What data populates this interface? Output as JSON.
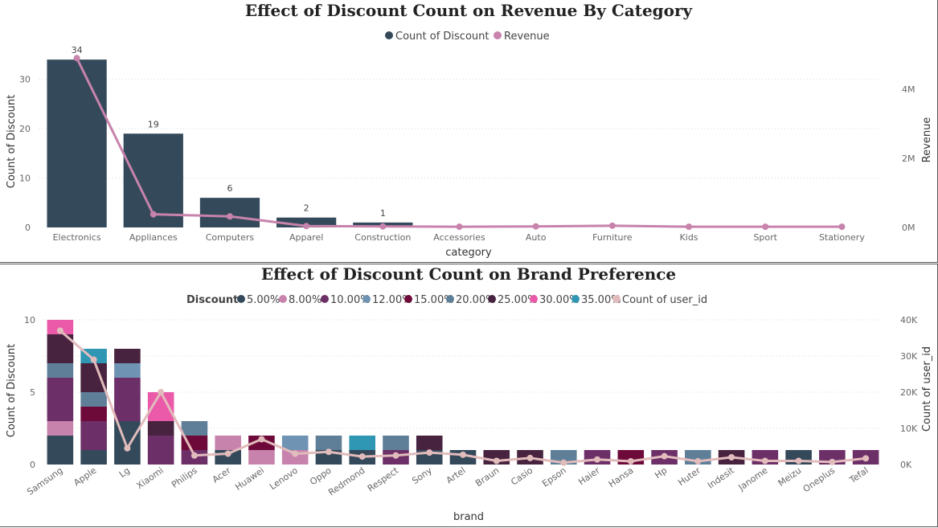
{
  "chart_data": [
    {
      "type": "bar",
      "title": "Effect of Discount Count on Revenue By Category",
      "xlabel": "category",
      "ylabel": "Count of Discount",
      "y2label": "Revenue",
      "ylim": [
        0,
        35
      ],
      "y2lim": [
        0,
        5000000
      ],
      "yticks": [
        "0",
        "10",
        "20",
        "30"
      ],
      "y2ticks": [
        "0M",
        "2M",
        "4M"
      ],
      "legend_position": "top-center",
      "grid": true,
      "categories": [
        "Electronics",
        "Appliances",
        "Computers",
        "Apparel",
        "Construction",
        "Accessories",
        "Auto",
        "Furniture",
        "Kids",
        "Sport",
        "Stationery"
      ],
      "series": [
        {
          "name": "Count of Discount",
          "kind": "bar",
          "color": "#34495a",
          "values": [
            34,
            19,
            6,
            2,
            1,
            0,
            0,
            0,
            0,
            0,
            0
          ],
          "labels": [
            "34",
            "19",
            "6",
            "2",
            "1"
          ]
        },
        {
          "name": "Revenue",
          "kind": "line",
          "axis": "right",
          "color": "#c783ac",
          "values": [
            4900000,
            380000,
            320000,
            40000,
            30000,
            20000,
            30000,
            50000,
            20000,
            20000,
            20000
          ]
        }
      ]
    },
    {
      "type": "bar",
      "stacked": true,
      "title": "Effect of Discount Count on Brand Preference",
      "xlabel": "brand",
      "ylabel": "Count of Discount",
      "y2label": "Count of user_id",
      "ylim": [
        0,
        10.5
      ],
      "y2lim": [
        0,
        42000
      ],
      "yticks": [
        "0",
        "5",
        "10"
      ],
      "y2ticks": [
        "0K",
        "10K",
        "20K",
        "30K",
        "40K"
      ],
      "legend_title": "Discount",
      "legend_position": "top-center",
      "grid": true,
      "categories": [
        "Samsung",
        "Apple",
        "Lg",
        "Xiaomi",
        "Philips",
        "Acer",
        "Huawei",
        "Lenovo",
        "Oppo",
        "Redmond",
        "Respect",
        "Sony",
        "Artel",
        "Braun",
        "Casio",
        "Epson",
        "Haier",
        "Hansa",
        "Hp",
        "Huter",
        "Indesit",
        "Janome",
        "Meizu",
        "Oneplus",
        "Tefal"
      ],
      "stack_series": [
        {
          "name": "5.00%",
          "color": "#34495a",
          "values": [
            2,
            1,
            3,
            0,
            0,
            1,
            0,
            0,
            1,
            1,
            0,
            1,
            1,
            0,
            0,
            0,
            0,
            0,
            0,
            0,
            0,
            0,
            1,
            0,
            0
          ]
        },
        {
          "name": "8.00%",
          "color": "#c783ac",
          "values": [
            1,
            0,
            0,
            0,
            0,
            1,
            1,
            1,
            0,
            0,
            0,
            0,
            0,
            0,
            0,
            0,
            0,
            0,
            0,
            0,
            0,
            0,
            0,
            0,
            0
          ]
        },
        {
          "name": "10.00%",
          "color": "#6d2f67",
          "values": [
            3,
            2,
            3,
            2,
            1,
            0,
            0,
            0,
            0,
            0,
            1,
            0,
            0,
            0,
            0,
            0,
            1,
            0,
            1,
            0,
            0,
            1,
            0,
            1,
            1
          ]
        },
        {
          "name": "12.00%",
          "color": "#6f93b3",
          "values": [
            0,
            0,
            1,
            0,
            0,
            0,
            0,
            1,
            0,
            0,
            0,
            0,
            0,
            0,
            0,
            0,
            0,
            0,
            0,
            0,
            0,
            0,
            0,
            0,
            0
          ]
        },
        {
          "name": "15.00%",
          "color": "#6e0a3a",
          "values": [
            0,
            1,
            0,
            0,
            1,
            0,
            1,
            0,
            0,
            0,
            0,
            0,
            0,
            0,
            0,
            0,
            0,
            1,
            0,
            0,
            0,
            0,
            0,
            0,
            0
          ]
        },
        {
          "name": "20.00%",
          "color": "#5f7f98",
          "values": [
            1,
            1,
            0,
            0,
            1,
            0,
            0,
            0,
            1,
            0,
            1,
            0,
            0,
            0,
            0,
            1,
            0,
            0,
            0,
            1,
            0,
            0,
            0,
            0,
            0
          ]
        },
        {
          "name": "25.00%",
          "color": "#47233f",
          "values": [
            2,
            2,
            1,
            1,
            0,
            0,
            0,
            0,
            0,
            0,
            0,
            1,
            0,
            1,
            1,
            0,
            0,
            0,
            0,
            0,
            1,
            0,
            0,
            0,
            0
          ]
        },
        {
          "name": "30.00%",
          "color": "#ea5aa8",
          "values": [
            1,
            0,
            0,
            2,
            0,
            0,
            0,
            0,
            0,
            0,
            0,
            0,
            0,
            0,
            0,
            0,
            0,
            0,
            0,
            0,
            0,
            0,
            0,
            0,
            0
          ]
        },
        {
          "name": "35.00%",
          "color": "#2f96b4",
          "values": [
            0,
            1,
            0,
            0,
            0,
            0,
            0,
            0,
            0,
            1,
            0,
            0,
            0,
            0,
            0,
            0,
            0,
            0,
            0,
            0,
            0,
            0,
            0,
            0,
            0
          ]
        }
      ],
      "line_series": {
        "name": "Count of user_id",
        "axis": "right",
        "color": "#e2bcbc",
        "values": [
          37000,
          29000,
          4500,
          20000,
          2500,
          3000,
          7000,
          3000,
          3500,
          2200,
          2500,
          3300,
          2700,
          1000,
          1800,
          500,
          1400,
          900,
          2300,
          900,
          2000,
          1000,
          1000,
          700,
          1700
        ]
      }
    }
  ]
}
